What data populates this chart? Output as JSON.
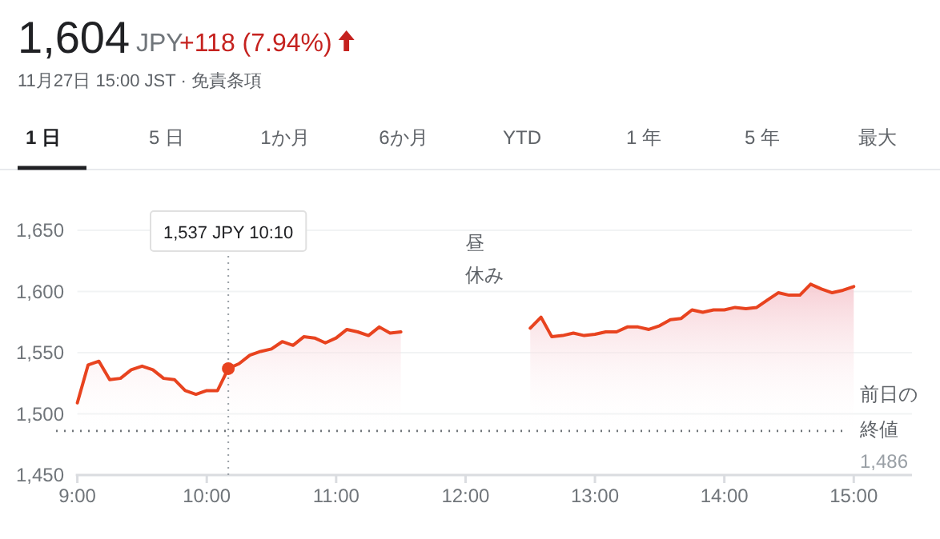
{
  "chart_data": {
    "type": "area",
    "title": "1,604",
    "subtitle": "11月27日 15:00 JST · 免責条項",
    "annotations": [
      "JPY",
      "+118 (7.94%)",
      "1 日",
      "5 日",
      "1か月",
      "6か月",
      "YTD",
      "1 年",
      "5 年",
      "最大",
      "昼休み",
      "1,537 JPY  10:10",
      "1,486"
    ],
    "x": [
      9,
      9.0833,
      9.1667,
      9.25,
      9.3333,
      9.4167,
      9.5,
      9.5833,
      9.6667,
      9.75,
      9.8333,
      9.9167,
      10,
      10.0833,
      10.1667,
      10.25,
      10.3333,
      10.4167,
      10.5,
      10.5833,
      10.6667,
      10.75,
      10.8333,
      10.9167,
      11,
      11.0833,
      11.1667,
      11.25,
      11.3333,
      11.4167,
      11.5,
      12,
      12.5,
      12.5833,
      12.6667,
      12.75,
      12.8333,
      12.9167,
      13,
      13.0833,
      13.1667,
      13.25,
      13.3333,
      13.4167,
      13.5,
      13.5833,
      13.6667,
      13.75,
      13.8333,
      13.9167,
      14,
      14.0833,
      14.1667,
      14.25,
      14.3333,
      14.4167,
      14.5,
      14.5833,
      14.6667,
      14.75,
      14.8333,
      14.9167,
      15
    ],
    "series": [
      {
        "color": "#e8431f",
        "values": [
          1509,
          1540,
          1543,
          1528,
          1529,
          1536,
          1539,
          1536,
          1529,
          1528,
          1519,
          1516,
          1519,
          1519,
          1537,
          1541,
          1548,
          1551,
          1553,
          1559,
          1556,
          1563,
          1562,
          1558,
          1562,
          1569,
          1567,
          1564,
          1571,
          1566,
          1567,
          null,
          1570,
          1579,
          1563,
          1564,
          1566,
          1564,
          1565,
          1567,
          1567,
          1571,
          1571,
          1569,
          1572,
          1577,
          1578,
          1585,
          1583,
          1585,
          1585,
          1587,
          1586,
          1587,
          1593,
          1599,
          1597,
          1597,
          1606,
          1602,
          1599,
          1601,
          1604
        ]
      }
    ],
    "xlim": [
      9,
      15.45
    ],
    "ylim": [
      1450,
      1650
    ],
    "xticks": [
      {
        "value": 9,
        "label": "9:00"
      },
      {
        "value": 10,
        "label": "10:00"
      },
      {
        "value": 11,
        "label": "11:00"
      },
      {
        "value": 12,
        "label": "12:00"
      },
      {
        "value": 13,
        "label": "13:00"
      },
      {
        "value": 14,
        "label": "14:00"
      },
      {
        "value": 15,
        "label": "15:00"
      }
    ],
    "yticks": [
      {
        "value": 1450,
        "label": "1,450"
      },
      {
        "value": 1500,
        "label": "1,500"
      },
      {
        "value": 1550,
        "label": "1,550"
      },
      {
        "value": 1600,
        "label": "1,600"
      },
      {
        "value": 1650,
        "label": "1,650"
      }
    ],
    "grid": "y",
    "marker": "none",
    "line_style": "solid",
    "ref_lines": [
      {
        "axis": "y",
        "value": 1486,
        "label": "前日の終値",
        "color": "#70757a",
        "line_style": "dotted"
      },
      {
        "axis": "x",
        "value": 10.1667,
        "color": "#9aa0a6",
        "line_style": "dotted"
      }
    ]
  }
}
